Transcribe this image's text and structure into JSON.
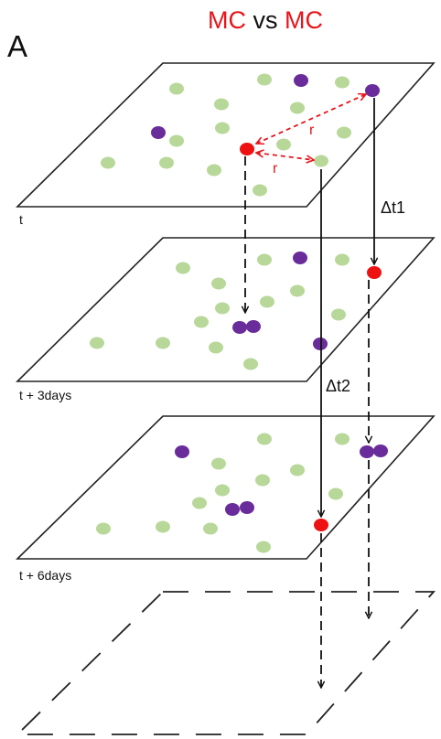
{
  "title": {
    "part1": "MC",
    "part2": " vs ",
    "part3": "MC"
  },
  "panel_label": "A",
  "planes": [
    {
      "label": "t"
    },
    {
      "label": "t + 3days"
    },
    {
      "label": "t + 6days"
    }
  ],
  "annotations": {
    "dt1": "Δt1",
    "dt2": "Δt2",
    "r1": "r",
    "r2": "r"
  },
  "colors": {
    "green": "#b8d89a",
    "purple": "#6a2c9a",
    "red": "#ee1111",
    "title_red": "#e8141a",
    "arrow_red": "#e8141a"
  }
}
